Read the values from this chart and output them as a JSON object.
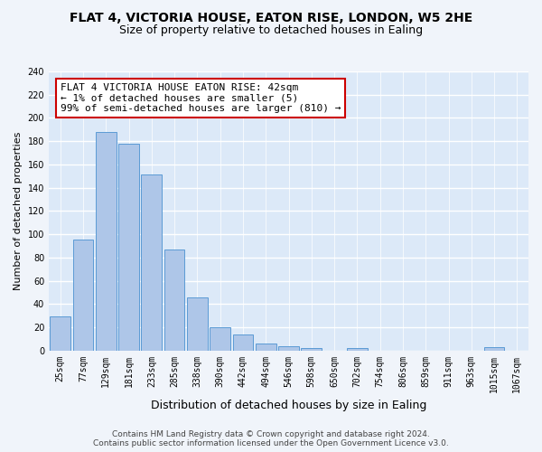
{
  "title": "FLAT 4, VICTORIA HOUSE, EATON RISE, LONDON, W5 2HE",
  "subtitle": "Size of property relative to detached houses in Ealing",
  "xlabel": "Distribution of detached houses by size in Ealing",
  "ylabel": "Number of detached properties",
  "categories": [
    "25sqm",
    "77sqm",
    "129sqm",
    "181sqm",
    "233sqm",
    "285sqm",
    "338sqm",
    "390sqm",
    "442sqm",
    "494sqm",
    "546sqm",
    "598sqm",
    "650sqm",
    "702sqm",
    "754sqm",
    "806sqm",
    "859sqm",
    "911sqm",
    "963sqm",
    "1015sqm",
    "1067sqm"
  ],
  "values": [
    29,
    95,
    188,
    178,
    151,
    87,
    46,
    20,
    14,
    6,
    4,
    2,
    0,
    2,
    0,
    0,
    0,
    0,
    0,
    3,
    0
  ],
  "bar_color": "#aec6e8",
  "bar_edge_color": "#5b9bd5",
  "background_color": "#dce9f8",
  "grid_color": "#ffffff",
  "fig_background": "#f0f4fa",
  "annotation_text": "FLAT 4 VICTORIA HOUSE EATON RISE: 42sqm\n← 1% of detached houses are smaller (5)\n99% of semi-detached houses are larger (810) →",
  "annotation_box_color": "#ffffff",
  "annotation_box_edge_color": "#cc0000",
  "ylim": [
    0,
    240
  ],
  "yticks": [
    0,
    20,
    40,
    60,
    80,
    100,
    120,
    140,
    160,
    180,
    200,
    220,
    240
  ],
  "footer_line1": "Contains HM Land Registry data © Crown copyright and database right 2024.",
  "footer_line2": "Contains public sector information licensed under the Open Government Licence v3.0.",
  "title_fontsize": 10,
  "subtitle_fontsize": 9,
  "xlabel_fontsize": 9,
  "ylabel_fontsize": 8,
  "tick_fontsize": 7,
  "annotation_fontsize": 8,
  "footer_fontsize": 6.5
}
